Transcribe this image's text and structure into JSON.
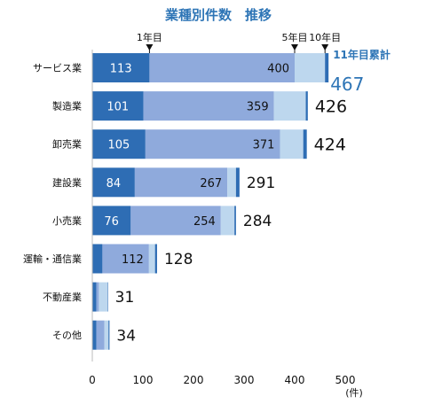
{
  "chart_data": {
    "type": "bar",
    "orientation": "horizontal",
    "stacked": true,
    "title": "業種別件数　推移",
    "categories": [
      "サービス業",
      "製造業",
      "卸売業",
      "建設業",
      "小売業",
      "運輸・通信業",
      "不動産業",
      "その他"
    ],
    "series": [
      {
        "values": [
          113,
          101,
          105,
          84,
          76,
          20,
          8,
          8
        ]
      },
      {
        "values": [
          287,
          258,
          266,
          183,
          178,
          92,
          5,
          16
        ]
      },
      {
        "values": [
          60,
          63,
          46,
          17,
          27,
          12,
          17,
          8
        ]
      },
      {
        "values": [
          7,
          4,
          7,
          7,
          3,
          4,
          1,
          2
        ]
      }
    ],
    "inner_labels": [
      {
        "category": "サービス業",
        "first": "113",
        "cumulative": "400"
      },
      {
        "category": "製造業",
        "first": "101",
        "cumulative": "359"
      },
      {
        "category": "卸売業",
        "first": "105",
        "cumulative": "371"
      },
      {
        "category": "建設業",
        "first": "84",
        "cumulative": "267"
      },
      {
        "category": "小売業",
        "first": "76",
        "cumulative": "254"
      },
      {
        "category": "運輸・通信業",
        "first": "",
        "cumulative": "112"
      },
      {
        "category": "不動産業",
        "first": "",
        "cumulative": ""
      },
      {
        "category": "その他",
        "first": "",
        "cumulative": ""
      }
    ],
    "totals": [
      "467",
      "426",
      "424",
      "291",
      "284",
      "128",
      "31",
      "34"
    ],
    "markers": [
      {
        "label": "1年目",
        "value": 113
      },
      {
        "label": "5年目",
        "value": 400
      },
      {
        "label": "10年目",
        "value": 460
      }
    ],
    "total_label": "11年目累計",
    "xlim": [
      0,
      500
    ],
    "xticks": [
      0,
      100,
      200,
      300,
      400,
      500
    ],
    "x_unit": "(件)",
    "colors": {
      "s1": "#2e6db4",
      "s2": "#8faadc",
      "s3": "#bdd7ee",
      "s4": "#2e6db4",
      "title": "#2e75b6",
      "highlight_total": "#2e75b6",
      "text": "#111111"
    }
  }
}
